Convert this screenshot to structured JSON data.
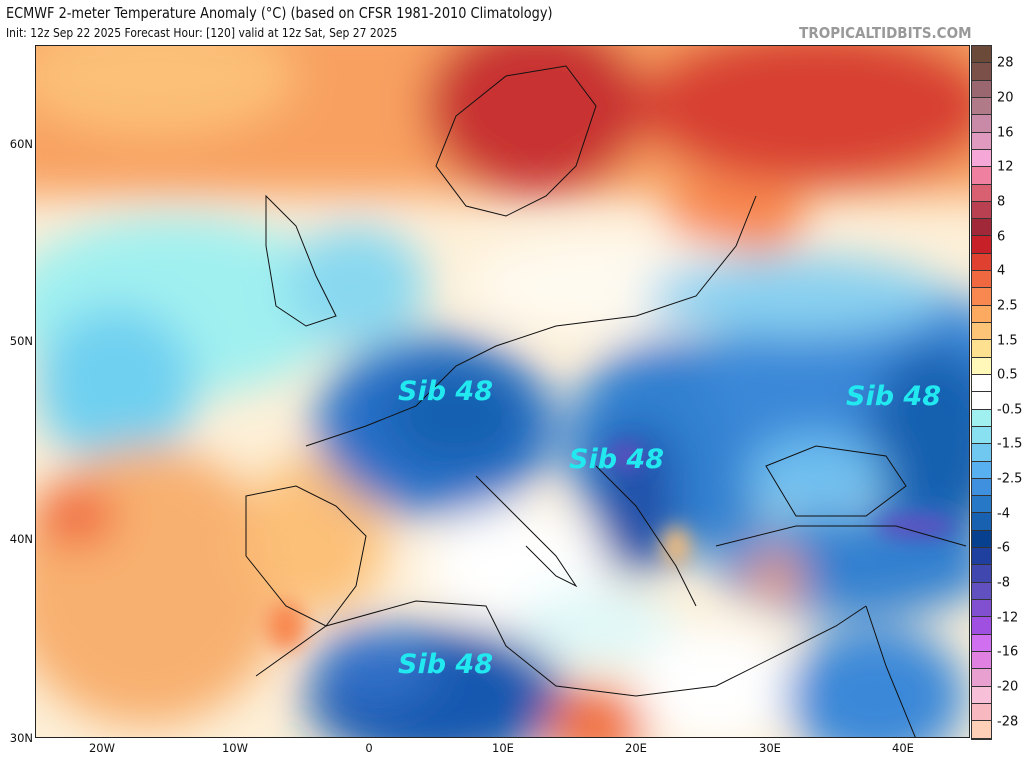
{
  "header": {
    "title": "ECMWF 2-meter Temperature Anomaly (°C) (based on CFSR 1981-2010 Climatology)",
    "subtitle": "Init: 12z Sep 22 2025   Forecast Hour: [120]   valid at 12z Sat, Sep 27 2025",
    "brand": "TROPICALTIDBITS.COM"
  },
  "map": {
    "lat_labels": [
      "60N",
      "50N",
      "40N",
      "30N"
    ],
    "lon_labels": [
      "20W",
      "10W",
      "0",
      "10E",
      "20E",
      "30E",
      "40E"
    ],
    "annotations": [
      "Sib 48",
      "Sib 48",
      "Sib 48",
      "Sib 48"
    ]
  },
  "colorbar": {
    "labels": [
      "28",
      "20",
      "16",
      "12",
      "8",
      "6",
      "4",
      "2.5",
      "1.5",
      "0.5",
      "-0.5",
      "-1.5",
      "-2.5",
      "-4",
      "-6",
      "-8",
      "-12",
      "-16",
      "-20",
      "-28"
    ],
    "colors": [
      "#6b4a3a",
      "#7a5048",
      "#9a6670",
      "#b07a88",
      "#c98aa8",
      "#e09ac0",
      "#f5a8d8",
      "#f080a0",
      "#d86070",
      "#b84050",
      "#a02838",
      "#c82028",
      "#e04030",
      "#f06840",
      "#f88850",
      "#fcaa60",
      "#fdc478",
      "#fde090",
      "#fff8b8",
      "#ffffff",
      "#ffffff",
      "#a0f0f0",
      "#88e0f0",
      "#70c8f0",
      "#58b0f0",
      "#4090e0",
      "#2878c8",
      "#1860b0",
      "#084090",
      "#2040a0",
      "#4048b0",
      "#6050c0",
      "#8050d0",
      "#a050e0",
      "#d070f0",
      "#e080e0",
      "#e8a0d0",
      "#f8c0d8",
      "#f8b8c0",
      "#ffd0b8"
    ]
  }
}
